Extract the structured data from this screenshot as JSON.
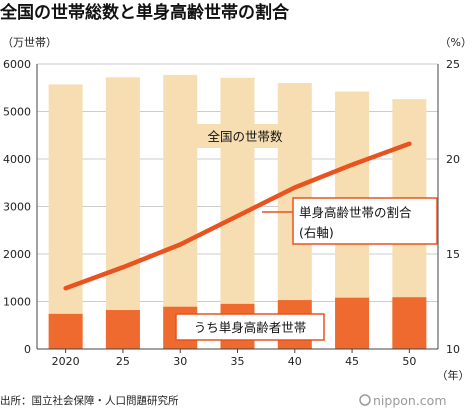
{
  "title": "全国の世帯総数と単身高齢世帯の割合",
  "source": "出所：国立社会保障・人口問題研究所",
  "brand": "nippon.com",
  "colors": {
    "total_bar": "#f6deb2",
    "single_bar": "#ef6a2e",
    "line": "#e8531f",
    "axis": "#444444",
    "grid": "#cccccc"
  },
  "chart_data": {
    "type": "bar",
    "categories": [
      "2020",
      "25",
      "30",
      "35",
      "40",
      "45",
      "50"
    ],
    "xlabel": "",
    "x_unit": "（年）",
    "y_left": {
      "unit": "（万世帯）",
      "lim": [
        0,
        6000
      ],
      "ticks": [
        "0",
        "1000",
        "2000",
        "3000",
        "4000",
        "5000",
        "6000"
      ]
    },
    "y_right": {
      "unit": "（%）",
      "lim": [
        10,
        25
      ],
      "ticks": [
        "10",
        "15",
        "20",
        "25"
      ]
    },
    "series": [
      {
        "name": "全国の世帯数",
        "type": "bar",
        "axis": "left",
        "values": [
          5570,
          5720,
          5770,
          5710,
          5600,
          5420,
          5260
        ]
      },
      {
        "name": "うち単身高齢者世帯",
        "type": "bar",
        "axis": "left",
        "values": [
          740,
          820,
          890,
          950,
          1030,
          1080,
          1090
        ]
      },
      {
        "name": "単身高齢世帯の割合（右軸）",
        "type": "line",
        "axis": "right",
        "values": [
          13.2,
          14.3,
          15.5,
          17.0,
          18.5,
          19.7,
          20.8
        ]
      }
    ],
    "annotations": {
      "total_label": "全国の世帯数",
      "line_label_1": "単身高齢世帯の割合",
      "line_label_2": "(右軸)",
      "single_label": "うち単身高齢者世帯"
    },
    "grid": true,
    "legend": "none"
  }
}
